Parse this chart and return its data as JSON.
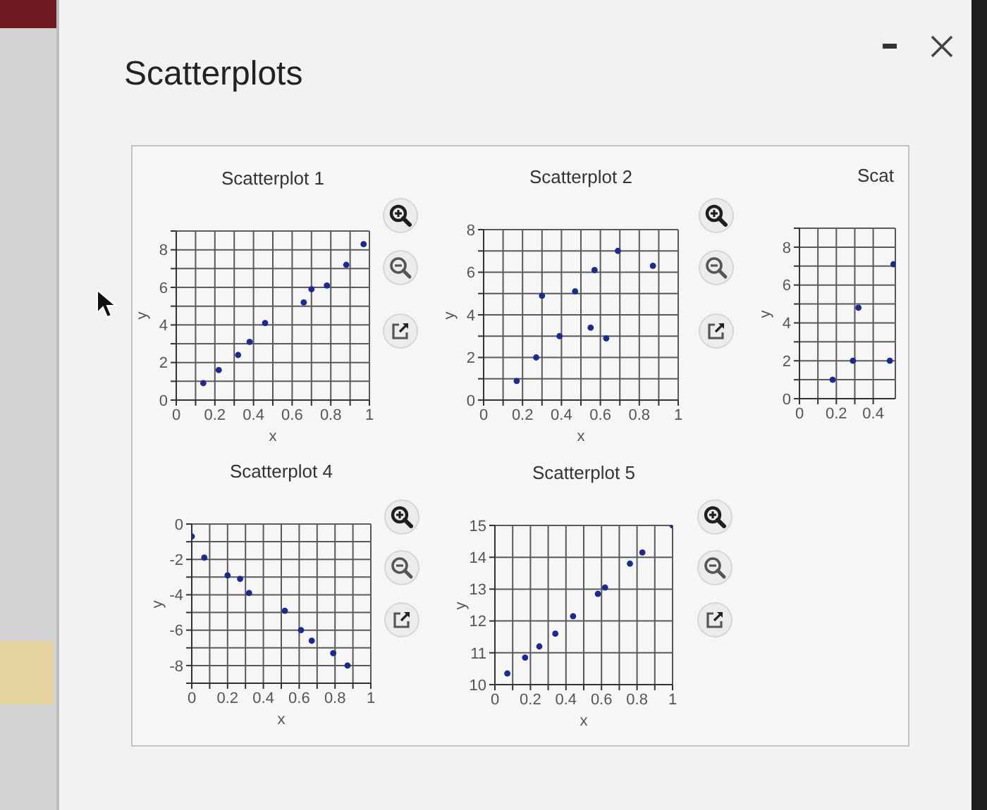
{
  "chart_data": [
    {
      "type": "other",
      "title": "Scatterplots"
    },
    {
      "type": "scatter",
      "title": "Scatterplot 1",
      "xlabel": "x",
      "ylabel": "y",
      "x": [
        0.14,
        0.22,
        0.32,
        0.38,
        0.46,
        0.66,
        0.7,
        0.78,
        0.88,
        0.97
      ],
      "values": [
        0.9,
        1.6,
        2.4,
        3.1,
        4.1,
        5.2,
        5.9,
        6.1,
        7.2,
        8.3
      ],
      "color": "#1c2a8c",
      "marker": "circle",
      "xlim": [
        0,
        1
      ],
      "ylim": [
        0,
        9
      ],
      "xticks": [
        0,
        {
          "value": 0.1,
          "label": null
        },
        0.2,
        {
          "value": 0.3,
          "label": null
        },
        0.4,
        {
          "value": 0.5,
          "label": null
        },
        0.6,
        {
          "value": 0.7,
          "label": null
        },
        0.8,
        {
          "value": 0.9,
          "label": null
        },
        1
      ],
      "yticks": [
        0,
        {
          "value": 1,
          "label": null
        },
        2,
        {
          "value": 3,
          "label": null
        },
        4,
        {
          "value": 5,
          "label": null
        },
        6,
        {
          "value": 7,
          "label": null
        },
        8,
        {
          "value": 9,
          "label": null
        }
      ],
      "grid": true
    },
    {
      "type": "scatter",
      "title": "Scatterplot 2",
      "xlabel": "x",
      "ylabel": "y",
      "x": [
        0.17,
        0.27,
        0.3,
        0.39,
        0.47,
        0.55,
        0.57,
        0.63,
        0.69,
        0.87
      ],
      "values": [
        0.9,
        2,
        4.9,
        3,
        5.1,
        3.4,
        6.1,
        2.9,
        7,
        6.3
      ],
      "color": "#1c2a8c",
      "marker": "circle",
      "xlim": [
        0,
        1
      ],
      "ylim": [
        0,
        8
      ],
      "xticks": [
        0,
        {
          "value": 0.1,
          "label": null
        },
        0.2,
        {
          "value": 0.3,
          "label": null
        },
        0.4,
        {
          "value": 0.5,
          "label": null
        },
        0.6,
        {
          "value": 0.7,
          "label": null
        },
        0.8,
        {
          "value": 0.9,
          "label": null
        },
        1
      ],
      "yticks": [
        0,
        {
          "value": 1,
          "label": null
        },
        2,
        {
          "value": 3,
          "label": null
        },
        4,
        {
          "value": 5,
          "label": null
        },
        6,
        {
          "value": 7,
          "label": null
        },
        8
      ],
      "grid": true
    },
    {
      "type": "scatter",
      "title": "Scat",
      "ylabel": "y",
      "x": [
        0.18,
        0.29,
        0.32,
        0.49,
        0.51
      ],
      "values": [
        1,
        2,
        4.8,
        2,
        7.1
      ],
      "color": "#1c2a8c",
      "marker": "circle",
      "xlim": [
        0,
        0.52
      ],
      "ylim": [
        0,
        9
      ],
      "xticks": [
        0,
        {
          "value": 0.1,
          "label": null
        },
        0.2,
        {
          "value": 0.3,
          "label": null
        },
        0.4
      ],
      "yticks": [
        0,
        {
          "value": 1,
          "label": null
        },
        2,
        {
          "value": 3,
          "label": null
        },
        4,
        {
          "value": 5,
          "label": null
        },
        6,
        {
          "value": 7,
          "label": null
        },
        8,
        {
          "value": 9,
          "label": null
        }
      ],
      "grid": true
    },
    {
      "type": "scatter",
      "title": "Scatterplot 4",
      "xlabel": "x",
      "ylabel": "y",
      "x": [
        0,
        0.07,
        0.2,
        0.27,
        0.32,
        0.52,
        0.61,
        0.67,
        0.79,
        0.87
      ],
      "values": [
        -0.7,
        -1.9,
        -2.9,
        -3.1,
        -3.9,
        -4.9,
        -6,
        -6.6,
        -7.3,
        -8
      ],
      "color": "#1c2a8c",
      "marker": "circle",
      "xlim": [
        0,
        1
      ],
      "ylim": [
        -9,
        0
      ],
      "xticks": [
        0,
        {
          "value": 0.1,
          "label": null
        },
        0.2,
        {
          "value": 0.3,
          "label": null
        },
        0.4,
        {
          "value": 0.5,
          "label": null
        },
        0.6,
        {
          "value": 0.7,
          "label": null
        },
        0.8,
        {
          "value": 0.9,
          "label": null
        },
        1
      ],
      "yticks": [
        {
          "value": -9,
          "label": null
        },
        -8,
        {
          "value": -7,
          "label": null
        },
        -6,
        {
          "value": -5,
          "label": null
        },
        -4,
        {
          "value": -3,
          "label": null
        },
        -2,
        {
          "value": -1,
          "label": null
        },
        0
      ],
      "grid": true
    },
    {
      "type": "scatter",
      "title": "Scatterplot 5",
      "xlabel": "x",
      "ylabel": "y",
      "x": [
        0.07,
        0.17,
        0.25,
        0.34,
        0.44,
        0.58,
        0.62,
        0.76,
        0.83,
        1
      ],
      "values": [
        10.35,
        10.85,
        11.2,
        11.6,
        12.15,
        12.85,
        13.05,
        13.8,
        14.15,
        15
      ],
      "color": "#1c2a8c",
      "marker": "circle",
      "xlim": [
        0,
        1
      ],
      "ylim": [
        10,
        15
      ],
      "xticks": [
        0,
        {
          "value": 0.1,
          "label": null
        },
        0.2,
        {
          "value": 0.3,
          "label": null
        },
        0.4,
        {
          "value": 0.5,
          "label": null
        },
        0.6,
        {
          "value": 0.7,
          "label": null
        },
        0.8,
        {
          "value": 0.9,
          "label": null
        },
        1
      ],
      "yticks": [
        10,
        11,
        12,
        13,
        14,
        15
      ],
      "grid": true
    }
  ]
}
